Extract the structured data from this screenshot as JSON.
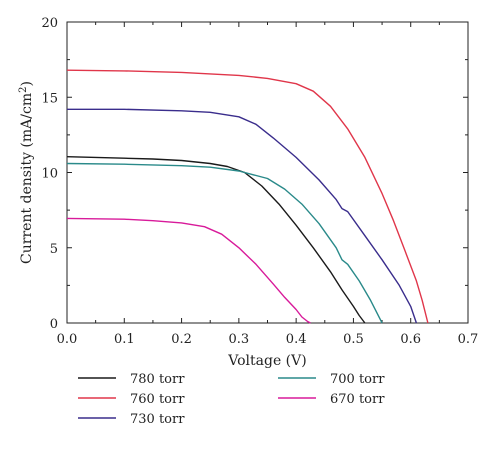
{
  "chart_data": {
    "type": "line",
    "xlabel": "Voltage (V)",
    "ylabel_main": "Current density (mA/cm",
    "ylabel_sup": "2",
    "ylabel_close": ")",
    "xlim": [
      0,
      0.7
    ],
    "ylim": [
      0,
      20
    ],
    "xticks": [
      0.0,
      0.1,
      0.2,
      0.3,
      0.4,
      0.5,
      0.6,
      0.7
    ],
    "xtick_labels": [
      "0.0",
      "0.1",
      "0.2",
      "0.3",
      "0.4",
      "0.5",
      "0.6",
      "0.7"
    ],
    "yticks": [
      0,
      5,
      10,
      15,
      20
    ],
    "ytick_labels": [
      "0",
      "5",
      "10",
      "15",
      "20"
    ],
    "grid": false,
    "legend_placement": "bottom, below plot, two columns",
    "series": [
      {
        "name": "780 torr",
        "color": "#1a1a1a",
        "x": [
          0.0,
          0.05,
          0.1,
          0.15,
          0.2,
          0.25,
          0.28,
          0.31,
          0.34,
          0.37,
          0.4,
          0.43,
          0.46,
          0.48,
          0.5,
          0.51,
          0.52
        ],
        "y": [
          11.05,
          11.0,
          10.95,
          10.9,
          10.8,
          10.6,
          10.4,
          10.0,
          9.1,
          7.9,
          6.5,
          5.0,
          3.4,
          2.2,
          1.1,
          0.5,
          0.0
        ]
      },
      {
        "name": "760 torr",
        "color": "#e0364a",
        "x": [
          0.0,
          0.1,
          0.2,
          0.3,
          0.35,
          0.4,
          0.43,
          0.46,
          0.49,
          0.52,
          0.55,
          0.57,
          0.59,
          0.61,
          0.62,
          0.63
        ],
        "y": [
          16.8,
          16.75,
          16.65,
          16.45,
          16.25,
          15.9,
          15.4,
          14.4,
          12.9,
          11.0,
          8.6,
          6.8,
          4.8,
          2.8,
          1.5,
          0.0
        ]
      },
      {
        "name": "730 torr",
        "color": "#3a2d8c",
        "x": [
          0.0,
          0.1,
          0.2,
          0.25,
          0.3,
          0.33,
          0.36,
          0.4,
          0.44,
          0.47,
          0.48,
          0.49,
          0.52,
          0.55,
          0.58,
          0.6,
          0.61
        ],
        "y": [
          14.2,
          14.2,
          14.1,
          14.0,
          13.7,
          13.2,
          12.3,
          11.0,
          9.5,
          8.2,
          7.6,
          7.4,
          5.8,
          4.2,
          2.5,
          1.1,
          0.0
        ]
      },
      {
        "name": "700 torr",
        "color": "#2a8a8a",
        "x": [
          0.0,
          0.1,
          0.2,
          0.25,
          0.3,
          0.35,
          0.38,
          0.41,
          0.44,
          0.47,
          0.48,
          0.49,
          0.51,
          0.53,
          0.55
        ],
        "y": [
          10.6,
          10.55,
          10.45,
          10.35,
          10.1,
          9.6,
          8.9,
          7.9,
          6.6,
          5.0,
          4.2,
          3.9,
          2.8,
          1.5,
          0.0
        ]
      },
      {
        "name": "670 torr",
        "color": "#d81a9a",
        "x": [
          0.0,
          0.1,
          0.15,
          0.2,
          0.24,
          0.27,
          0.3,
          0.33,
          0.36,
          0.38,
          0.4,
          0.41,
          0.42,
          0.425
        ],
        "y": [
          6.95,
          6.9,
          6.8,
          6.65,
          6.4,
          5.9,
          5.0,
          3.9,
          2.6,
          1.7,
          0.9,
          0.4,
          0.1,
          0.0
        ]
      }
    ]
  }
}
